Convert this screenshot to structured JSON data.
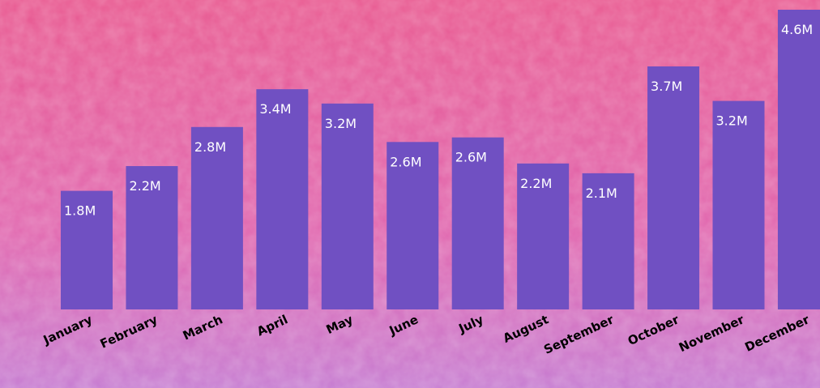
{
  "chart_data": {
    "type": "bar",
    "categories": [
      "January",
      "February",
      "March",
      "April",
      "May",
      "June",
      "July",
      "August",
      "September",
      "October",
      "November",
      "December"
    ],
    "values": [
      1820000,
      2200000,
      2800000,
      3380000,
      3160000,
      2570000,
      2640000,
      2240000,
      2090000,
      3730000,
      3200000,
      4600000
    ],
    "value_labels": [
      "1.8M",
      "2.2M",
      "2.8M",
      "3.4M",
      "3.2M",
      "2.6M",
      "2.6M",
      "2.2M",
      "2.1M",
      "3.7M",
      "3.2M",
      "4.6M"
    ],
    "color": "#7050c2"
  }
}
